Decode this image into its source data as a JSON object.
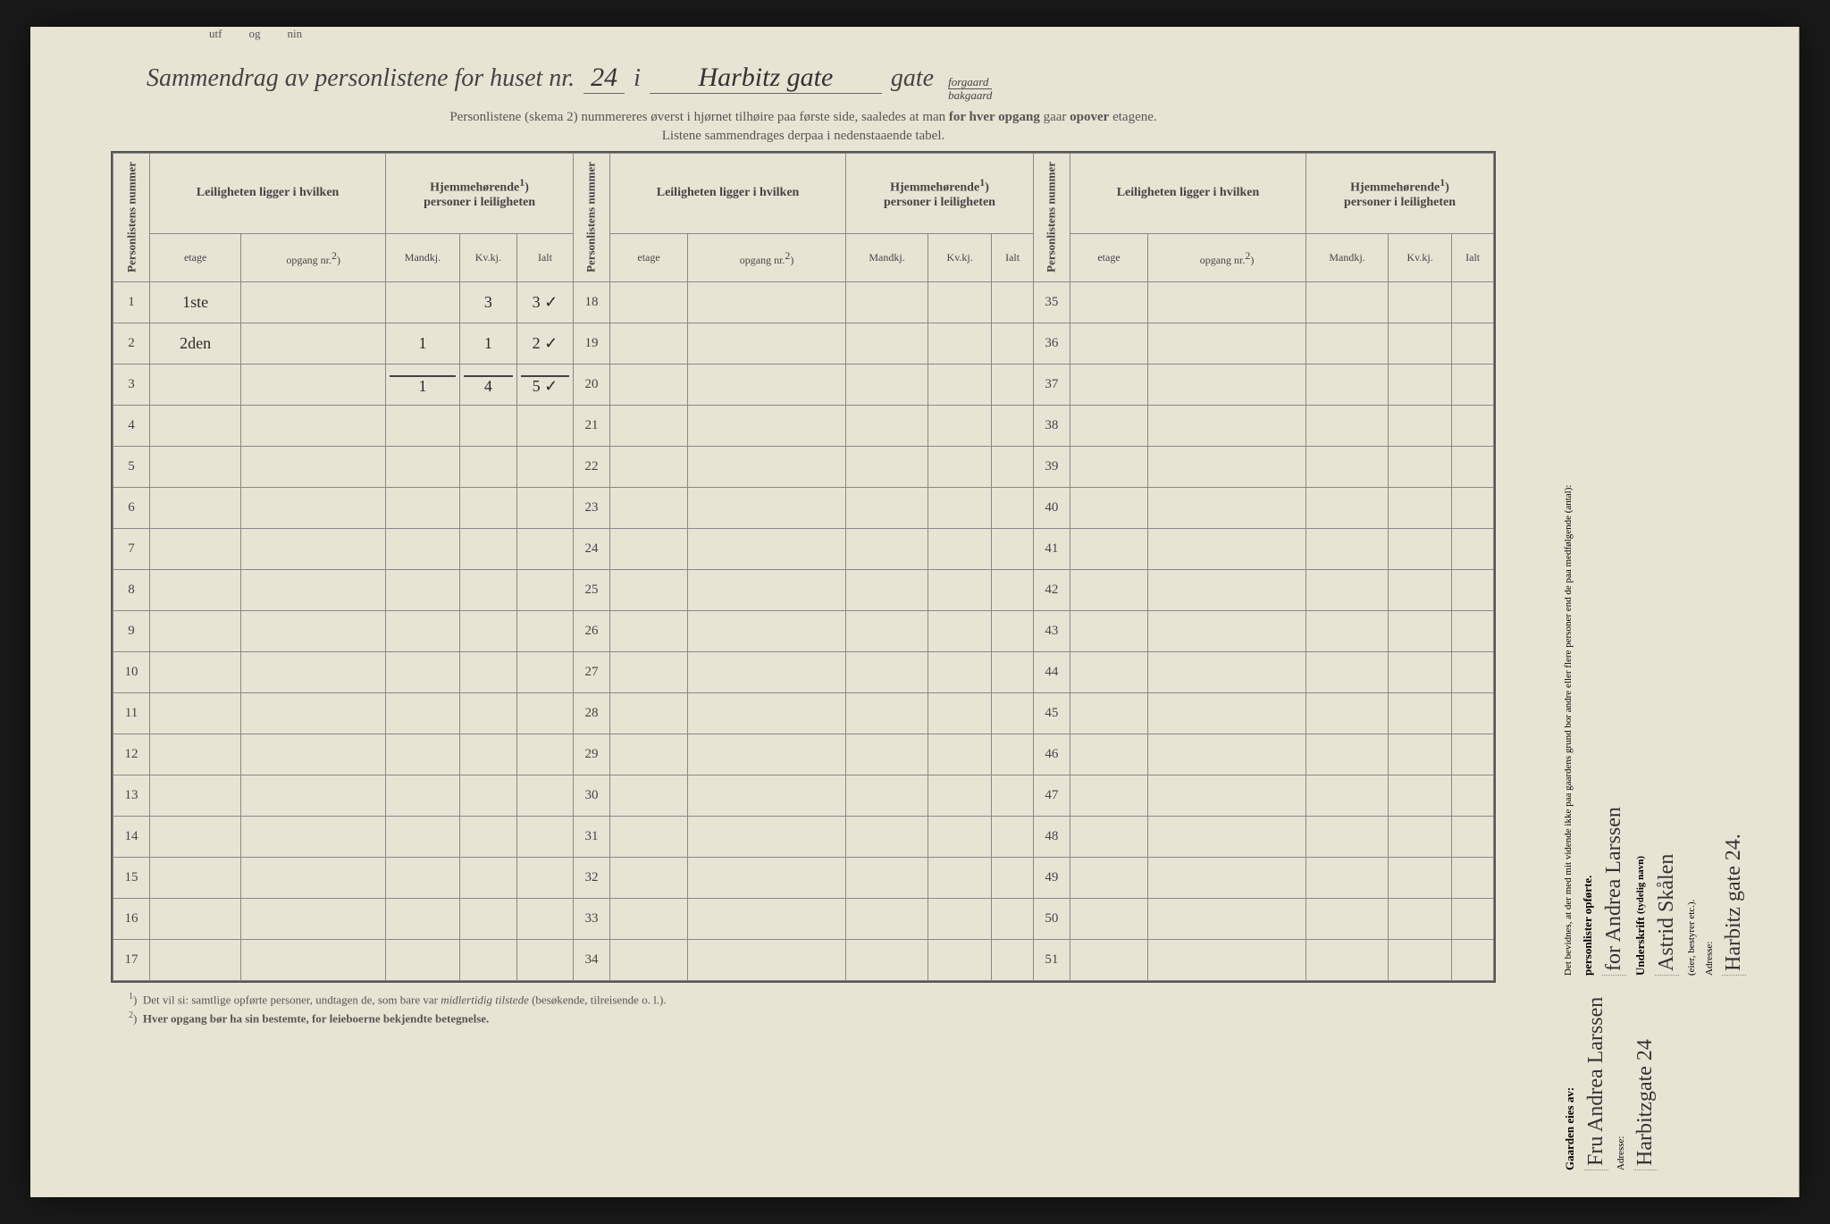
{
  "background_color": "#e8e4d4",
  "text_color": "#444",
  "border_color": "#888",
  "title": {
    "prefix": "Sammendrag av personlistene for huset nr.",
    "house_nr": "24",
    "i": "i",
    "street": "Harbitz gate",
    "gate": "gate",
    "forgaard": "forgaard",
    "bakgaard": "bakgaard"
  },
  "subtitle1": "Personlistene (skema 2) nummereres øverst i hjørnet tilhøire paa første side, saaledes at man ",
  "subtitle1_bold1": "for hver opgang",
  "subtitle1_mid": " gaar ",
  "subtitle1_bold2": "opover",
  "subtitle1_end": " etagene.",
  "subtitle2": "Listene sammendrages derpaa i nedenstaaende tabel.",
  "headers": {
    "personlistens": "Personlistens nummer",
    "leiligheten": "Leiligheten ligger i hvilken",
    "hjemme": "Hjemmehørende",
    "hjemme_sup": "1",
    "hjemme_sub": "personer i leiligheten",
    "etage": "etage",
    "opgang": "opgang nr.",
    "opgang_sup": "2",
    "mandkj": "Mandkj.",
    "kvkj": "Kv.kj.",
    "ialt": "Ialt"
  },
  "rows_block1": [
    {
      "n": "1",
      "etage": "1ste",
      "opgang": "",
      "m": "",
      "k": "3",
      "i": "3 ✓"
    },
    {
      "n": "2",
      "etage": "2den",
      "opgang": "",
      "m": "1",
      "k": "1",
      "i": "2 ✓"
    },
    {
      "n": "3",
      "etage": "",
      "opgang": "",
      "m": "1",
      "k": "4",
      "i": "5 ✓"
    },
    {
      "n": "4",
      "etage": "",
      "opgang": "",
      "m": "",
      "k": "",
      "i": ""
    },
    {
      "n": "5",
      "etage": "",
      "opgang": "",
      "m": "",
      "k": "",
      "i": ""
    },
    {
      "n": "6",
      "etage": "",
      "opgang": "",
      "m": "",
      "k": "",
      "i": ""
    },
    {
      "n": "7",
      "etage": "",
      "opgang": "",
      "m": "",
      "k": "",
      "i": ""
    },
    {
      "n": "8",
      "etage": "",
      "opgang": "",
      "m": "",
      "k": "",
      "i": ""
    },
    {
      "n": "9",
      "etage": "",
      "opgang": "",
      "m": "",
      "k": "",
      "i": ""
    },
    {
      "n": "10",
      "etage": "",
      "opgang": "",
      "m": "",
      "k": "",
      "i": ""
    },
    {
      "n": "11",
      "etage": "",
      "opgang": "",
      "m": "",
      "k": "",
      "i": ""
    },
    {
      "n": "12",
      "etage": "",
      "opgang": "",
      "m": "",
      "k": "",
      "i": ""
    },
    {
      "n": "13",
      "etage": "",
      "opgang": "",
      "m": "",
      "k": "",
      "i": ""
    },
    {
      "n": "14",
      "etage": "",
      "opgang": "",
      "m": "",
      "k": "",
      "i": ""
    },
    {
      "n": "15",
      "etage": "",
      "opgang": "",
      "m": "",
      "k": "",
      "i": ""
    },
    {
      "n": "16",
      "etage": "",
      "opgang": "",
      "m": "",
      "k": "",
      "i": ""
    },
    {
      "n": "17",
      "etage": "",
      "opgang": "",
      "m": "",
      "k": "",
      "i": ""
    }
  ],
  "rows_block2": [
    {
      "n": "18"
    },
    {
      "n": "19"
    },
    {
      "n": "20"
    },
    {
      "n": "21"
    },
    {
      "n": "22"
    },
    {
      "n": "23"
    },
    {
      "n": "24"
    },
    {
      "n": "25"
    },
    {
      "n": "26"
    },
    {
      "n": "27"
    },
    {
      "n": "28"
    },
    {
      "n": "29"
    },
    {
      "n": "30"
    },
    {
      "n": "31"
    },
    {
      "n": "32"
    },
    {
      "n": "33"
    },
    {
      "n": "34"
    }
  ],
  "rows_block3": [
    {
      "n": "35"
    },
    {
      "n": "36"
    },
    {
      "n": "37"
    },
    {
      "n": "38"
    },
    {
      "n": "39"
    },
    {
      "n": "40"
    },
    {
      "n": "41"
    },
    {
      "n": "42"
    },
    {
      "n": "43"
    },
    {
      "n": "44"
    },
    {
      "n": "45"
    },
    {
      "n": "46"
    },
    {
      "n": "47"
    },
    {
      "n": "48"
    },
    {
      "n": "49"
    },
    {
      "n": "50"
    },
    {
      "n": "51"
    }
  ],
  "footnote1_sup": "1",
  "footnote1": "Det vil si: samtlige opførte personer, undtagen de, som bare var ",
  "footnote1_italic": "midlertidig tilstede",
  "footnote1_end": " (besøkende, tilreisende o. l.).",
  "footnote2_sup": "2",
  "footnote2": "Hver opgang bør ha sin bestemte, for leieboerne bekjendte betegnelse.",
  "right": {
    "gaarden": "Gaarden eies av:",
    "owner": "Fru Andrea Larssen",
    "adresse1_label": "Adresse:",
    "adresse1": "Harbitzgate 24",
    "bevidnes": "Det bevidnes, at der med mit vidende ikke paa gaardens grund bor andre eller flere personer end de paa medfølgende (antal):",
    "personlister": "personlister opførte.",
    "for_owner": "for Andrea Larssen",
    "underskrift_label": "Underskrift",
    "underskrift_note": "(tydelig navn)",
    "signature": "Astrid Skålen",
    "eier_note": "(eier, bestyrer etc.).",
    "adresse2_label": "Adresse:",
    "adresse2": "Harbitz gate 24."
  },
  "top_cut": [
    "utf",
    "og",
    "nin"
  ]
}
